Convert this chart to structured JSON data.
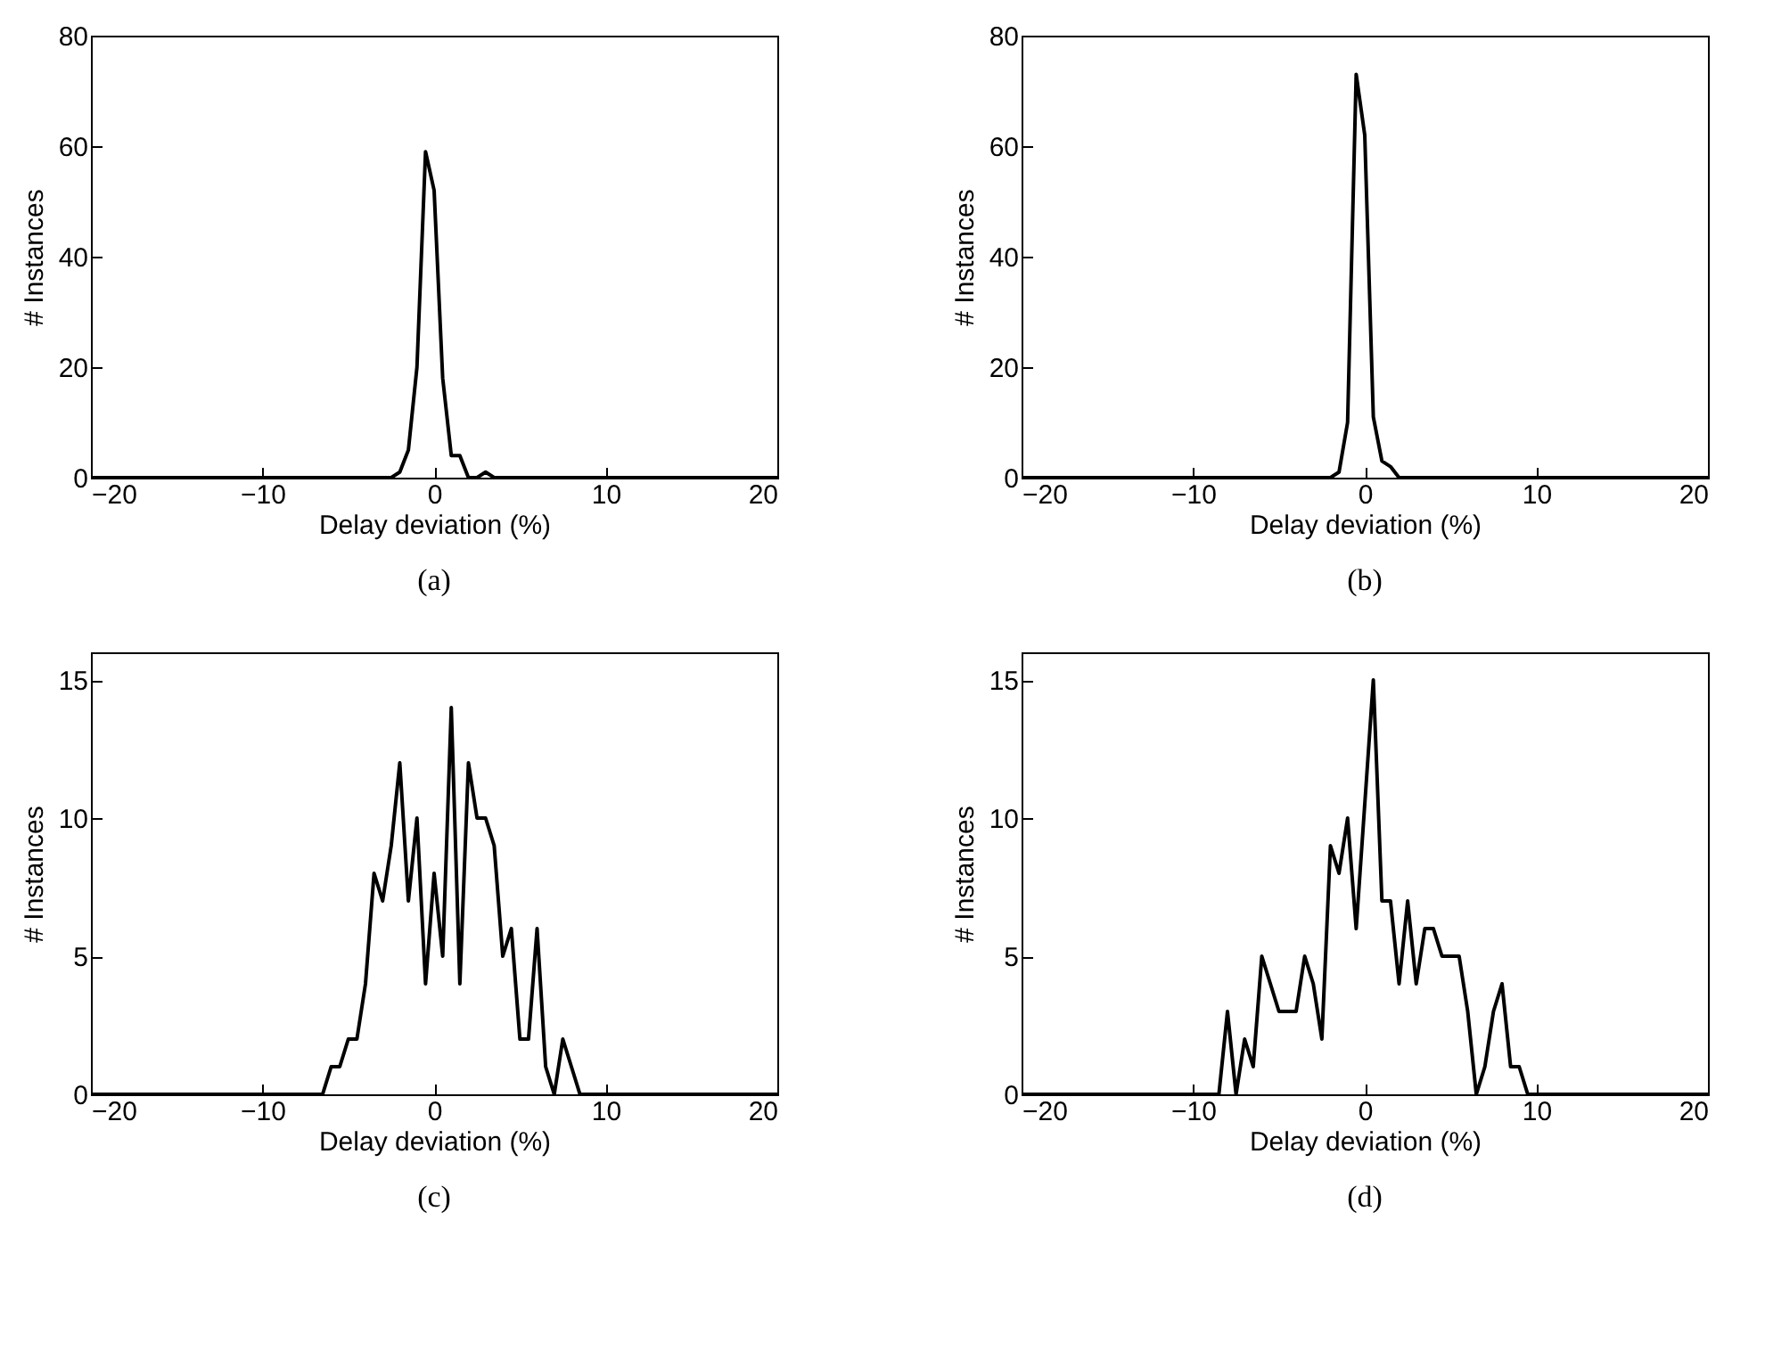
{
  "chart_data": [
    {
      "type": "line",
      "title": "(a)",
      "xlabel": "Delay deviation (%)",
      "ylabel": "# Instances",
      "xlim": [
        -20,
        20
      ],
      "xticks": [
        -20,
        -10,
        0,
        10,
        20
      ],
      "ylim": [
        0,
        80
      ],
      "yticks": [
        0,
        20,
        40,
        60,
        80
      ],
      "grid": false,
      "series": [
        {
          "color": "#000000",
          "x": [
            -20,
            -2.5,
            -2,
            -1.5,
            -1,
            -0.5,
            0,
            0.5,
            1,
            1.5,
            2,
            2.5,
            3,
            3.5,
            20
          ],
          "values": [
            0,
            0,
            1,
            5,
            20,
            59,
            52,
            18,
            4,
            4,
            0,
            0,
            1,
            0,
            0
          ]
        }
      ]
    },
    {
      "type": "line",
      "title": "(b)",
      "xlabel": "Delay deviation (%)",
      "ylabel": "# Instances",
      "xlim": [
        -20,
        20
      ],
      "xticks": [
        -20,
        -10,
        0,
        10,
        20
      ],
      "ylim": [
        0,
        80
      ],
      "yticks": [
        0,
        20,
        40,
        60,
        80
      ],
      "grid": false,
      "series": [
        {
          "color": "#000000",
          "x": [
            -20,
            -2,
            -1.5,
            -1,
            -0.5,
            0,
            0.5,
            1,
            1.5,
            2,
            20
          ],
          "values": [
            0,
            0,
            1,
            10,
            73,
            62,
            11,
            3,
            2,
            0,
            0
          ]
        }
      ]
    },
    {
      "type": "line",
      "title": "(c)",
      "xlabel": "Delay deviation (%)",
      "ylabel": "# Instances",
      "xlim": [
        -20,
        20
      ],
      "xticks": [
        -20,
        -10,
        0,
        10,
        20
      ],
      "ylim": [
        0,
        16
      ],
      "yticks": [
        0,
        5,
        10,
        15
      ],
      "grid": false,
      "series": [
        {
          "color": "#000000",
          "x": [
            -20,
            -6.5,
            -6,
            -5.5,
            -5,
            -4.5,
            -4,
            -3.5,
            -3,
            -2.5,
            -2,
            -1.5,
            -1,
            -0.5,
            0,
            0.5,
            1,
            1.5,
            2,
            2.5,
            3,
            3.5,
            4,
            4.5,
            5,
            5.5,
            6,
            6.5,
            7,
            7.5,
            8,
            8.5,
            20
          ],
          "values": [
            0,
            0,
            1,
            1,
            2,
            2,
            4,
            8,
            7,
            9,
            12,
            7,
            10,
            4,
            8,
            5,
            14,
            4,
            12,
            10,
            10,
            9,
            5,
            6,
            2,
            2,
            6,
            1,
            0,
            2,
            1,
            0,
            0
          ]
        }
      ]
    },
    {
      "type": "line",
      "title": "(d)",
      "xlabel": "Delay deviation (%)",
      "ylabel": "# Instances",
      "xlim": [
        -20,
        20
      ],
      "xticks": [
        -20,
        -10,
        0,
        10,
        20
      ],
      "ylim": [
        0,
        16
      ],
      "yticks": [
        0,
        5,
        10,
        15
      ],
      "grid": false,
      "series": [
        {
          "color": "#000000",
          "x": [
            -20,
            -8.5,
            -8,
            -7.5,
            -7,
            -6.5,
            -6,
            -5.5,
            -5,
            -4.5,
            -4,
            -3.5,
            -3,
            -2.5,
            -2,
            -1.5,
            -1,
            -0.5,
            0.5,
            1,
            1.5,
            2,
            2.5,
            3,
            3.5,
            4,
            4.5,
            5,
            5.5,
            6,
            6.5,
            7,
            7.5,
            8,
            8.5,
            9,
            9.5,
            20
          ],
          "values": [
            0,
            0,
            3,
            0,
            2,
            1,
            5,
            4,
            3,
            3,
            3,
            5,
            4,
            2,
            9,
            8,
            10,
            6,
            15,
            7,
            7,
            4,
            7,
            4,
            6,
            6,
            5,
            5,
            5,
            3,
            0,
            1,
            3,
            4,
            1,
            1,
            0,
            0
          ]
        }
      ]
    }
  ]
}
